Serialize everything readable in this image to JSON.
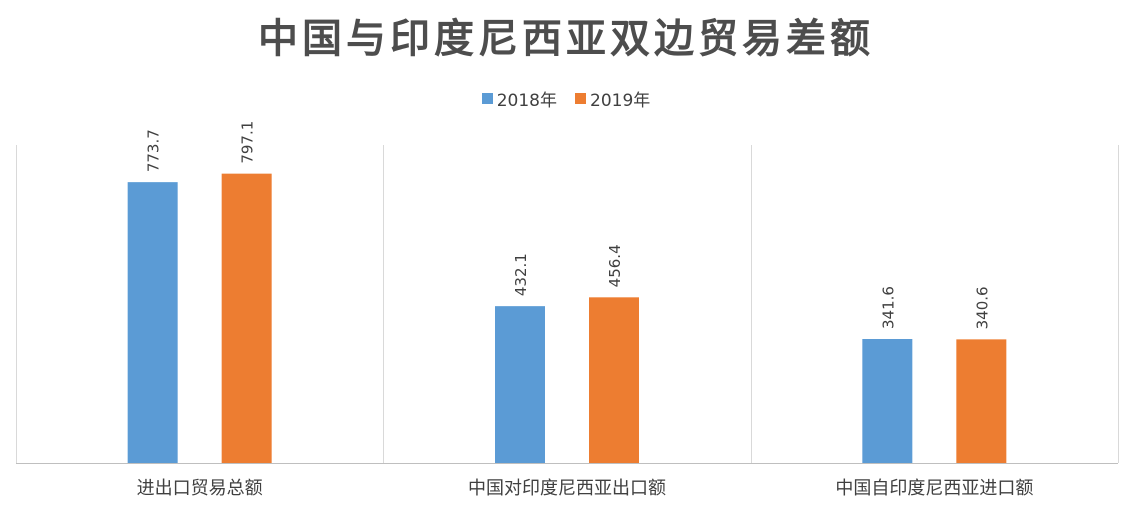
{
  "chart_data": {
    "type": "bar",
    "title": "中国与印度尼西亚双边贸易差额",
    "categories": [
      "进出口贸易总额",
      "中国对印度尼西亚出口额",
      "中国自印度尼西亚进口额"
    ],
    "series": [
      {
        "name": "2018年",
        "values": [
          773.7,
          432.1,
          341.6
        ],
        "labels": [
          "773.7",
          "432.1",
          "341.6"
        ],
        "color": "#5b9bd5"
      },
      {
        "name": "2019年",
        "values": [
          797.1,
          456.4,
          340.6
        ],
        "labels": [
          "797.1",
          "456.4",
          "340.6"
        ],
        "color": "#ed7d31"
      }
    ],
    "ylim": [
      0,
      1000
    ],
    "xlabel": "",
    "ylabel": "",
    "grid": false,
    "legend_position": "top-center",
    "separator_color": "#d9d9d9",
    "axis_color": "#bfbfbf",
    "label_color": "#404040"
  }
}
